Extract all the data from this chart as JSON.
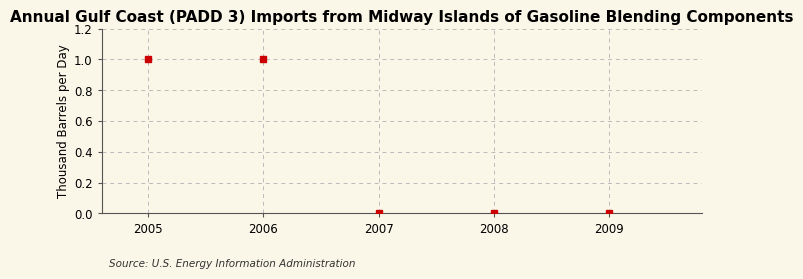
{
  "title": "Annual Gulf Coast (PADD 3) Imports from Midway Islands of Gasoline Blending Components",
  "ylabel": "Thousand Barrels per Day",
  "source_text": "Source: U.S. Energy Information Administration",
  "x_values": [
    2005,
    2006,
    2007,
    2008,
    2009
  ],
  "y_values": [
    1.0,
    1.0,
    0.0,
    0.0,
    0.0
  ],
  "xlim": [
    2004.6,
    2009.8
  ],
  "ylim": [
    0.0,
    1.2
  ],
  "yticks": [
    0.0,
    0.2,
    0.4,
    0.6,
    0.8,
    1.0,
    1.2
  ],
  "xticks": [
    2005,
    2006,
    2007,
    2008,
    2009
  ],
  "marker_color": "#cc0000",
  "marker_size": 4,
  "bg_color": "#faf6e8",
  "plot_bg_color": "#faf6e8",
  "grid_color": "#bbbbbb",
  "title_fontsize": 11,
  "label_fontsize": 8.5,
  "tick_fontsize": 8.5,
  "source_fontsize": 7.5
}
